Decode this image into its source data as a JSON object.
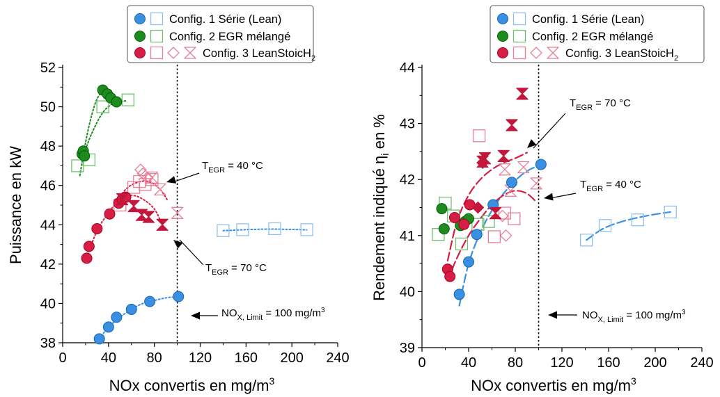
{
  "chart_data": [
    {
      "type": "scatter",
      "xlabel": "NOx convertis en mg/m³",
      "ylabel": "Puissance en kW",
      "xlim": [
        0,
        240
      ],
      "ylim": [
        38,
        52
      ],
      "xticks": [
        "0",
        "40",
        "80",
        "120",
        "160",
        "200",
        "240"
      ],
      "yticks": [
        "38",
        "40",
        "42",
        "44",
        "46",
        "48",
        "50",
        "52"
      ],
      "legend": {
        "placement": "top",
        "entries": [
          {
            "label": "Config. 1 Série (Lean)",
            "color": "#3b8fe0"
          },
          {
            "label": "Config. 2 EGR mélangé",
            "color": "#1f8a1f"
          },
          {
            "label": "Config. 3 LeanStoicH",
            "subscript": "2",
            "color": "#d41e45"
          }
        ]
      },
      "limit_line_x": 100,
      "annotations": [
        {
          "text": "T",
          "sub": "EGR",
          "rest": " = 40 °C"
        },
        {
          "text": "T",
          "sub": "EGR",
          "rest": " = 70 °C"
        },
        {
          "text": "NO",
          "sub": "X, Limit",
          "rest": " = 100 mg/m³"
        }
      ],
      "series": [
        {
          "config": 1,
          "marker": "circle",
          "filled": true,
          "color": "#3b8fe0",
          "x": [
            32,
            40,
            47,
            60,
            76,
            101
          ],
          "y": [
            38.2,
            38.8,
            39.3,
            39.7,
            40.1,
            40.35
          ]
        },
        {
          "config": 1,
          "marker": "square",
          "filled": false,
          "color": "#8fc0ef",
          "x": [
            140,
            157,
            185,
            213
          ],
          "y": [
            43.7,
            43.75,
            43.8,
            43.75
          ]
        },
        {
          "config": 2,
          "marker": "circle",
          "filled": true,
          "color": "#1f8a1f",
          "x": [
            17,
            18,
            19,
            35,
            39,
            42,
            47
          ],
          "y": [
            47.6,
            47.75,
            47.5,
            50.85,
            50.65,
            50.45,
            50.25
          ]
        },
        {
          "config": 2,
          "marker": "square",
          "filled": false,
          "color": "#6fbf6f",
          "x": [
            13,
            23,
            35,
            57
          ],
          "y": [
            47.0,
            47.3,
            50.0,
            50.35
          ]
        },
        {
          "config": 3,
          "marker": "circle",
          "filled": true,
          "color": "#d41e45",
          "x": [
            21,
            23,
            30,
            41,
            49,
            52,
            55
          ],
          "y": [
            42.3,
            42.9,
            43.8,
            44.55,
            45.1,
            45.3,
            45.4
          ]
        },
        {
          "config": 3,
          "marker": "square",
          "filled": false,
          "color": "#e87f98",
          "x": [
            50,
            62,
            67,
            72,
            78
          ],
          "y": [
            45.0,
            45.9,
            46.2,
            46.05,
            46.3
          ]
        },
        {
          "config": 3,
          "marker": "diamond",
          "filled": false,
          "color": "#e87f98",
          "x": [
            68,
            70,
            74
          ],
          "y": [
            46.8,
            46.6,
            46.4
          ]
        },
        {
          "config": 3,
          "marker": "hourglass",
          "filled": false,
          "color": "#e87f98",
          "x": [
            78,
            85,
            100
          ],
          "y": [
            46.4,
            45.8,
            44.6
          ]
        },
        {
          "config": 3,
          "marker": "hourglass",
          "filled": true,
          "color": "#c3163c",
          "x": [
            52,
            62,
            69,
            75,
            87
          ],
          "y": [
            45.3,
            44.95,
            44.5,
            44.4,
            44.0
          ]
        }
      ],
      "trend_lines": [
        {
          "color": "#3b8fe0",
          "style": "dotted",
          "x": [
            32,
            40,
            50,
            60,
            70,
            80,
            90,
            101
          ],
          "y": [
            38.2,
            38.8,
            39.3,
            39.7,
            40.0,
            40.15,
            40.28,
            40.35
          ]
        },
        {
          "color": "#3b8fe0",
          "style": "dotted",
          "x": [
            140,
            160,
            180,
            200,
            213
          ],
          "y": [
            43.7,
            43.75,
            43.78,
            43.76,
            43.74
          ]
        },
        {
          "color": "#1f8a1f",
          "style": "dotted",
          "x": [
            15,
            20,
            25,
            30,
            36
          ],
          "y": [
            46.5,
            48.2,
            49.5,
            50.4,
            50.85
          ]
        },
        {
          "color": "#1f8a1f",
          "style": "dotted",
          "x": [
            18,
            25,
            35,
            45,
            55
          ],
          "y": [
            47.5,
            48.6,
            49.7,
            50.2,
            50.3
          ]
        },
        {
          "color": "#d41e45",
          "style": "dotted",
          "x": [
            21,
            30,
            40,
            50,
            60,
            70,
            80,
            87
          ],
          "y": [
            42.3,
            43.7,
            44.6,
            45.3,
            45.5,
            45.3,
            44.8,
            44.0
          ]
        },
        {
          "color": "#d41e45",
          "style": "dotted",
          "x": [
            45,
            55,
            65,
            75,
            85,
            92
          ],
          "y": [
            45.0,
            45.8,
            46.15,
            46.2,
            45.8,
            45.2
          ]
        }
      ]
    },
    {
      "type": "scatter",
      "xlabel": "NOx convertis en mg/m³",
      "ylabel": "Rendement indiqué η",
      "ylabel_sub": "i",
      "ylabel_rest": " en %",
      "xlim": [
        0,
        240
      ],
      "ylim": [
        39,
        44
      ],
      "xticks": [
        "0",
        "40",
        "80",
        "120",
        "160",
        "200",
        "240"
      ],
      "yticks": [
        "39",
        "40",
        "41",
        "42",
        "43",
        "44"
      ],
      "legend": {
        "placement": "top",
        "entries": [
          {
            "label": "Config. 1 Série (Lean)",
            "color": "#3b8fe0"
          },
          {
            "label": "Config. 2 EGR mélangé",
            "color": "#1f8a1f"
          },
          {
            "label": "Config. 3 LeanStoicH",
            "subscript": "2",
            "color": "#d41e45"
          }
        ]
      },
      "limit_line_x": 100,
      "annotations": [
        {
          "text": "T",
          "sub": "EGR",
          "rest": " = 70 °C"
        },
        {
          "text": "T",
          "sub": "EGR",
          "rest": " = 40 °C"
        },
        {
          "text": "NO",
          "sub": "X, Limit",
          "rest": " = 100 mg/m³"
        }
      ],
      "series": [
        {
          "config": 1,
          "marker": "circle",
          "filled": true,
          "color": "#3b8fe0",
          "x": [
            32,
            40,
            47,
            61,
            77,
            102
          ],
          "y": [
            39.95,
            40.53,
            41.02,
            41.55,
            41.95,
            42.27
          ]
        },
        {
          "config": 1,
          "marker": "square",
          "filled": false,
          "color": "#8fc0ef",
          "x": [
            141,
            157,
            185,
            213
          ],
          "y": [
            40.92,
            41.18,
            41.28,
            41.42
          ]
        },
        {
          "config": 2,
          "marker": "circle",
          "filled": true,
          "color": "#1f8a1f",
          "x": [
            17,
            19,
            33,
            37,
            40
          ],
          "y": [
            41.48,
            41.12,
            41.18,
            41.25,
            41.3
          ]
        },
        {
          "config": 2,
          "marker": "square",
          "filled": false,
          "color": "#6fbf6f",
          "x": [
            14,
            20,
            27,
            34,
            48,
            57
          ],
          "y": [
            41.02,
            41.58,
            41.35,
            40.85,
            41.2,
            41.25
          ]
        },
        {
          "config": 3,
          "marker": "circle",
          "filled": true,
          "color": "#d41e45",
          "x": [
            22,
            24,
            28,
            36,
            41
          ],
          "y": [
            40.4,
            40.27,
            41.32,
            41.2,
            41.55
          ]
        },
        {
          "config": 3,
          "marker": "square",
          "filled": false,
          "color": "#e87f98",
          "x": [
            49,
            62,
            71,
            79
          ],
          "y": [
            42.78,
            40.98,
            41.4,
            41.3
          ]
        },
        {
          "config": 3,
          "marker": "diamond",
          "filled": false,
          "color": "#e87f98",
          "x": [
            69,
            72
          ],
          "y": [
            41.35,
            41.0
          ]
        },
        {
          "config": 3,
          "marker": "hourglass",
          "filled": false,
          "color": "#e87f98",
          "x": [
            71,
            76,
            87,
            98
          ],
          "y": [
            42.18,
            41.8,
            42.22,
            41.93
          ]
        },
        {
          "config": 3,
          "marker": "hourglass",
          "filled": true,
          "color": "#c3163c",
          "x": [
            52,
            54,
            63,
            70,
            77,
            86
          ],
          "y": [
            42.32,
            42.38,
            41.4,
            42.42,
            42.97,
            43.53
          ]
        },
        {
          "config": 3,
          "marker": "diamond",
          "filled": true,
          "color": "#c3163c",
          "x": [
            48,
            52
          ],
          "y": [
            41.5,
            42.3
          ]
        }
      ],
      "trend_lines": [
        {
          "color": "#3b8fe0",
          "style": "dashed",
          "x": [
            32,
            40,
            50,
            60,
            70,
            80,
            90,
            102
          ],
          "y": [
            39.75,
            40.5,
            41.05,
            41.45,
            41.75,
            41.98,
            42.15,
            42.27
          ]
        },
        {
          "color": "#3b8fe0",
          "style": "dashed",
          "x": [
            141,
            155,
            170,
            185,
            200,
            213
          ],
          "y": [
            40.92,
            41.12,
            41.24,
            41.32,
            41.38,
            41.42
          ]
        },
        {
          "color": "#d41e45",
          "style": "dashed",
          "x": [
            22,
            30,
            40,
            50,
            60,
            70,
            80,
            90
          ],
          "y": [
            40.55,
            41.25,
            41.72,
            42.0,
            42.18,
            42.3,
            42.38,
            42.48
          ]
        },
        {
          "color": "#d41e45",
          "style": "dashed",
          "x": [
            22,
            30,
            40,
            50,
            60,
            70,
            80,
            90,
            98
          ],
          "y": [
            40.2,
            40.6,
            41.0,
            41.3,
            41.55,
            41.72,
            41.8,
            41.75,
            41.6
          ]
        }
      ]
    }
  ]
}
